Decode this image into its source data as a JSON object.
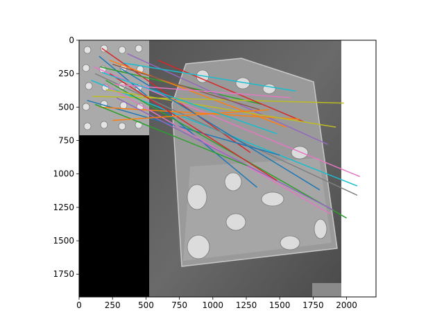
{
  "chart_data": {
    "type": "line",
    "title": "",
    "xlabel": "",
    "ylabel": "",
    "xlim": [
      0,
      2220
    ],
    "ylim": [
      1920,
      0
    ],
    "y_inverted": true,
    "grid": false,
    "x_ticks": [
      0,
      250,
      500,
      750,
      1000,
      1250,
      1500,
      1750,
      2000
    ],
    "y_ticks": [
      0,
      250,
      500,
      750,
      1000,
      1250,
      1500,
      1750
    ],
    "background_images": [
      {
        "name": "query-image-thumbnail",
        "x_range": [
          0,
          520
        ],
        "y_range": [
          0,
          710
        ],
        "tone": "grayscale"
      },
      {
        "name": "black-padding-region",
        "x_range": [
          0,
          520
        ],
        "y_range": [
          710,
          1920
        ],
        "tone": "black"
      },
      {
        "name": "target-photo",
        "x_range": [
          520,
          1960
        ],
        "y_range": [
          0,
          1920
        ],
        "tone": "grayscale"
      }
    ],
    "series": [
      {
        "color": "#d62728",
        "x": [
          170,
          1280
        ],
        "y": [
          60,
          840
        ]
      },
      {
        "color": "#1f77b4",
        "x": [
          150,
          1330
        ],
        "y": [
          120,
          1100
        ]
      },
      {
        "color": "#2ca02c",
        "x": [
          160,
          1370
        ],
        "y": [
          200,
          480
        ]
      },
      {
        "color": "#ff7f0e",
        "x": [
          230,
          1550
        ],
        "y": [
          150,
          650
        ]
      },
      {
        "color": "#9467bd",
        "x": [
          360,
          1860
        ],
        "y": [
          100,
          780
        ]
      },
      {
        "color": "#e377c2",
        "x": [
          110,
          2100
        ],
        "y": [
          200,
          1020
        ]
      },
      {
        "color": "#17becf",
        "x": [
          90,
          2080
        ],
        "y": [
          300,
          1090
        ]
      },
      {
        "color": "#7f7f7f",
        "x": [
          120,
          2080
        ],
        "y": [
          250,
          1160
        ]
      },
      {
        "color": "#bcbd22",
        "x": [
          100,
          1980
        ],
        "y": [
          420,
          470
        ]
      },
      {
        "color": "#d62728",
        "x": [
          590,
          1680
        ],
        "y": [
          150,
          610
        ]
      },
      {
        "color": "#1f77b4",
        "x": [
          60,
          1500
        ],
        "y": [
          450,
          860
        ]
      },
      {
        "color": "#2ca02c",
        "x": [
          200,
          2000
        ],
        "y": [
          300,
          1330
        ]
      },
      {
        "color": "#ff7f0e",
        "x": [
          150,
          1650
        ],
        "y": [
          500,
          590
        ]
      },
      {
        "color": "#8c564b",
        "x": [
          250,
          1350
        ],
        "y": [
          180,
          520
        ]
      },
      {
        "color": "#e377c2",
        "x": [
          190,
          1880
        ],
        "y": [
          330,
          1300
        ]
      },
      {
        "color": "#17becf",
        "x": [
          330,
          1620
        ],
        "y": [
          170,
          380
        ]
      },
      {
        "color": "#bcbd22",
        "x": [
          200,
          1920
        ],
        "y": [
          370,
          650
        ]
      },
      {
        "color": "#9467bd",
        "x": [
          280,
          1900
        ],
        "y": [
          430,
          1270
        ]
      },
      {
        "color": "#d62728",
        "x": [
          230,
          1480
        ],
        "y": [
          250,
          1050
        ]
      },
      {
        "color": "#1f77b4",
        "x": [
          310,
          1800
        ],
        "y": [
          210,
          1120
        ]
      },
      {
        "color": "#2ca02c",
        "x": [
          120,
          1260
        ],
        "y": [
          480,
          940
        ]
      },
      {
        "color": "#ff7f0e",
        "x": [
          250,
          1420
        ],
        "y": [
          600,
          520
        ]
      },
      {
        "color": "#e377c2",
        "x": [
          260,
          1580
        ],
        "y": [
          330,
          430
        ]
      },
      {
        "color": "#17becf",
        "x": [
          170,
          1480
        ],
        "y": [
          240,
          700
        ]
      }
    ]
  }
}
